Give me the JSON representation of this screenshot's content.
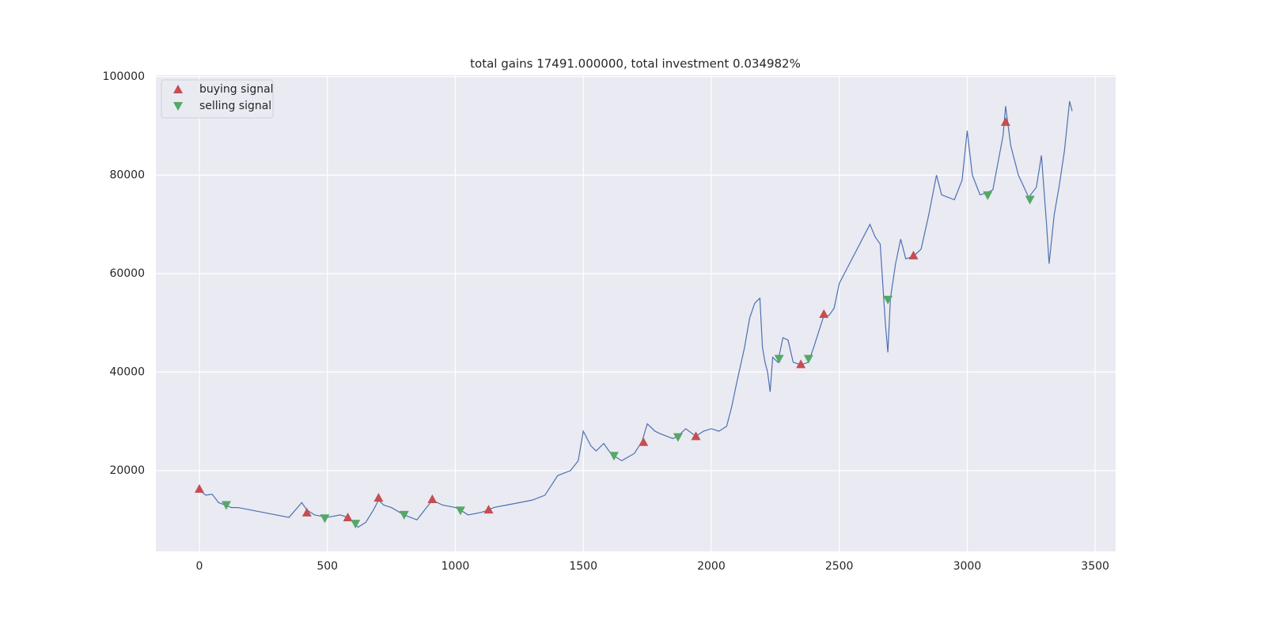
{
  "chart_data": {
    "type": "line",
    "title": "total gains 17491.000000, total investment 0.034982%",
    "xlim": [
      -170,
      3580
    ],
    "ylim": [
      3600,
      100300
    ],
    "xticks": [
      0,
      500,
      1000,
      1500,
      2000,
      2500,
      3000,
      3500
    ],
    "yticks": [
      20000,
      40000,
      60000,
      80000,
      100000
    ],
    "grid": true,
    "background": "#eaeaf2",
    "legend": "upper left",
    "series": [
      {
        "type": "line",
        "color": "#4c72b0",
        "x": [
          0,
          25,
          50,
          75,
          100,
          125,
          150,
          200,
          250,
          300,
          350,
          400,
          420,
          450,
          500,
          550,
          580,
          600,
          620,
          650,
          680,
          700,
          720,
          750,
          800,
          850,
          880,
          910,
          950,
          1000,
          1020,
          1050,
          1100,
          1130,
          1150,
          1200,
          1250,
          1300,
          1350,
          1400,
          1450,
          1480,
          1500,
          1530,
          1550,
          1580,
          1600,
          1620,
          1650,
          1700,
          1730,
          1750,
          1780,
          1800,
          1850,
          1870,
          1900,
          1940,
          1970,
          2000,
          2030,
          2060,
          2080,
          2100,
          2130,
          2150,
          2170,
          2190,
          2200,
          2210,
          2220,
          2230,
          2240,
          2260,
          2280,
          2300,
          2320,
          2350,
          2380,
          2400,
          2440,
          2460,
          2480,
          2500,
          2530,
          2560,
          2600,
          2620,
          2640,
          2660,
          2680,
          2690,
          2700,
          2720,
          2740,
          2760,
          2790,
          2820,
          2850,
          2880,
          2900,
          2950,
          2980,
          3000,
          3020,
          3050,
          3080,
          3100,
          3140,
          3150,
          3170,
          3200,
          3240,
          3270,
          3290,
          3310,
          3320,
          3340,
          3360,
          3380,
          3400,
          3410
        ],
        "values": [
          16000,
          15000,
          15200,
          13500,
          13000,
          12500,
          12500,
          12000,
          11500,
          11000,
          10500,
          13500,
          12000,
          11000,
          10500,
          11000,
          10500,
          9500,
          8500,
          9500,
          12000,
          14000,
          13000,
          12500,
          11000,
          10000,
          12000,
          14000,
          13000,
          12500,
          12000,
          11000,
          11500,
          12000,
          12500,
          13000,
          13500,
          14000,
          15000,
          19000,
          20000,
          22000,
          28000,
          25000,
          24000,
          25500,
          24000,
          23000,
          22000,
          23500,
          26000,
          29500,
          28000,
          27500,
          26500,
          27000,
          28500,
          27000,
          28000,
          28500,
          28000,
          29000,
          33000,
          38000,
          45000,
          51000,
          54000,
          55000,
          45000,
          42000,
          40000,
          36000,
          43000,
          42000,
          47000,
          46500,
          42000,
          41500,
          42000,
          45000,
          51500,
          51500,
          53000,
          58000,
          61000,
          64000,
          68000,
          70000,
          67500,
          66000,
          50000,
          44000,
          55000,
          62000,
          67000,
          63000,
          63500,
          65000,
          72000,
          80000,
          76000,
          75000,
          79000,
          89000,
          80000,
          76000,
          76500,
          77000,
          88000,
          94000,
          86000,
          80000,
          75500,
          77500,
          84000,
          70000,
          62000,
          72000,
          78000,
          85000,
          95000,
          93000
        ]
      },
      {
        "type": "scatter",
        "name": "buying signal",
        "color": "#c44e52",
        "marker": "triangle-up",
        "x": [
          0,
          420,
          580,
          700,
          910,
          1130,
          1735,
          1940,
          2350,
          2440,
          2790,
          3150
        ],
        "values": [
          16300,
          11500,
          10500,
          14500,
          14200,
          12100,
          25800,
          27000,
          41600,
          51800,
          63700,
          90800
        ]
      },
      {
        "type": "scatter",
        "name": "selling signal",
        "color": "#55a868",
        "marker": "triangle-down",
        "x": [
          105,
          490,
          610,
          800,
          1020,
          1620,
          1870,
          2265,
          2380,
          2690,
          3080,
          3245
        ],
        "values": [
          13000,
          10300,
          9200,
          11000,
          11900,
          23000,
          26800,
          42700,
          42700,
          54700,
          75900,
          75000
        ]
      }
    ]
  }
}
